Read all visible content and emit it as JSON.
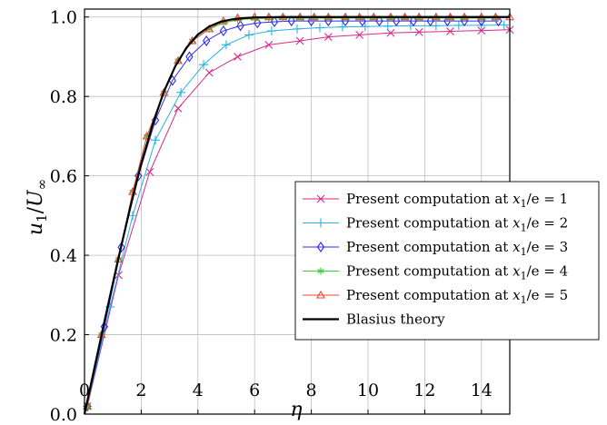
{
  "chart_data": {
    "type": "line",
    "xlabel": "η",
    "ylabel": "u1/U∞",
    "xlim": [
      0,
      15
    ],
    "ylim": [
      0,
      1.02
    ],
    "xticks": [
      "0",
      "2",
      "4",
      "6",
      "8",
      "10",
      "12",
      "14"
    ],
    "yticks": [
      "0.0",
      "0.2",
      "0.4",
      "0.6",
      "0.8",
      "1.0"
    ],
    "grid": true,
    "legend_position": "bottom-right",
    "series": [
      {
        "name": "Present computation at x1/e = 1",
        "color": "#d62a8a",
        "marker": "x",
        "x": [
          0.1,
          1.2,
          2.3,
          3.3,
          4.4,
          5.4,
          6.5,
          7.6,
          8.6,
          9.7,
          10.8,
          11.8,
          12.9,
          14.0,
          15.0
        ],
        "y": [
          0.02,
          0.35,
          0.61,
          0.77,
          0.86,
          0.9,
          0.93,
          0.94,
          0.95,
          0.955,
          0.96,
          0.962,
          0.964,
          0.966,
          0.968
        ]
      },
      {
        "name": "Present computation at x1/e = 2",
        "color": "#27b4df",
        "marker": "plus",
        "x": [
          0.1,
          0.9,
          1.7,
          2.5,
          3.4,
          4.2,
          5.0,
          5.8,
          6.6,
          7.5,
          8.3,
          9.1,
          9.9,
          10.7,
          11.5,
          12.4,
          13.2,
          14.0,
          14.8
        ],
        "y": [
          0.02,
          0.27,
          0.5,
          0.69,
          0.81,
          0.88,
          0.93,
          0.955,
          0.965,
          0.97,
          0.973,
          0.975,
          0.976,
          0.977,
          0.978,
          0.978,
          0.979,
          0.979,
          0.98
        ]
      },
      {
        "name": "Present computation at x1/e = 3",
        "color": "#2e2ee8",
        "marker": "diamond",
        "x": [
          0.1,
          0.7,
          1.3,
          1.9,
          2.5,
          3.1,
          3.7,
          4.3,
          4.9,
          5.5,
          6.1,
          6.7,
          7.3,
          8.0,
          8.6,
          9.2,
          9.8,
          10.4,
          11.0,
          11.6,
          12.2,
          12.8,
          13.4,
          14.0,
          14.6
        ],
        "y": [
          0.02,
          0.22,
          0.42,
          0.6,
          0.74,
          0.84,
          0.9,
          0.94,
          0.965,
          0.978,
          0.985,
          0.988,
          0.99,
          0.99,
          0.99,
          0.99,
          0.99,
          0.99,
          0.99,
          0.99,
          0.99,
          0.99,
          0.99,
          0.99,
          0.99
        ]
      },
      {
        "name": "Present computation at x1/e = 4",
        "color": "#3ad33a",
        "marker": "asterisk",
        "x": [
          0.1,
          0.6,
          1.2,
          1.7,
          2.2,
          2.8,
          3.3,
          3.8,
          4.4,
          4.9,
          5.4,
          6.0,
          6.5,
          7.0,
          7.6,
          8.1,
          8.6,
          9.2,
          9.7,
          10.2,
          10.8,
          11.3,
          11.8,
          12.4,
          12.9,
          13.4,
          14.0,
          14.5
        ],
        "y": [
          0.02,
          0.2,
          0.39,
          0.56,
          0.7,
          0.81,
          0.89,
          0.94,
          0.97,
          0.985,
          0.993,
          0.996,
          0.997,
          0.997,
          0.997,
          0.997,
          0.997,
          0.997,
          0.997,
          0.997,
          0.997,
          0.997,
          0.997,
          0.997,
          0.997,
          0.997,
          0.997,
          0.997
        ]
      },
      {
        "name": "Present computation at x1/e = 5",
        "color": "#e8473a",
        "marker": "triangle",
        "x": [
          0.1,
          0.6,
          1.2,
          1.7,
          2.2,
          2.8,
          3.3,
          3.8,
          4.4,
          4.9,
          5.4,
          6.0,
          6.5,
          7.0,
          7.6,
          8.1,
          8.6,
          9.2,
          9.7,
          10.2,
          10.8,
          11.3,
          11.8,
          12.4,
          12.9,
          13.4,
          14.0,
          14.5,
          15.0
        ],
        "y": [
          0.02,
          0.2,
          0.39,
          0.56,
          0.7,
          0.81,
          0.89,
          0.94,
          0.97,
          0.99,
          0.998,
          1.0,
          1.0,
          1.0,
          1.0,
          1.0,
          1.0,
          1.0,
          1.0,
          1.0,
          1.0,
          1.0,
          1.0,
          1.0,
          1.0,
          1.0,
          1.0,
          1.0,
          1.0
        ]
      },
      {
        "name": "Blasius theory",
        "color": "#000000",
        "marker": "none",
        "x": [
          0,
          0.4,
          0.8,
          1.2,
          1.6,
          2.0,
          2.4,
          2.8,
          3.2,
          3.6,
          4.0,
          4.4,
          4.8,
          5.2,
          5.6,
          6.0,
          7.0,
          8.0,
          10.0,
          12.0,
          15.0
        ],
        "y": [
          0,
          0.133,
          0.265,
          0.394,
          0.517,
          0.63,
          0.729,
          0.812,
          0.876,
          0.923,
          0.956,
          0.976,
          0.988,
          0.994,
          0.997,
          0.999,
          1.0,
          1.0,
          1.0,
          1.0,
          1.0
        ]
      }
    ],
    "legend": [
      {
        "prefix": "Present computation at ",
        "var": "x",
        "sub": "1",
        "suffix": "/e = 1"
      },
      {
        "prefix": "Present computation at ",
        "var": "x",
        "sub": "1",
        "suffix": "/e = 2"
      },
      {
        "prefix": "Present computation at ",
        "var": "x",
        "sub": "1",
        "suffix": "/e = 3"
      },
      {
        "prefix": "Present computation at ",
        "var": "x",
        "sub": "1",
        "suffix": "/e = 4"
      },
      {
        "prefix": "Present computation at ",
        "var": "x",
        "sub": "1",
        "suffix": "/e = 5"
      },
      {
        "prefix": "Blasius theory",
        "var": "",
        "sub": "",
        "suffix": ""
      }
    ],
    "ylabel_parts": {
      "u": "u",
      "u_sub": "1",
      "slash": "/",
      "U": "U",
      "U_sub": "∞"
    }
  }
}
